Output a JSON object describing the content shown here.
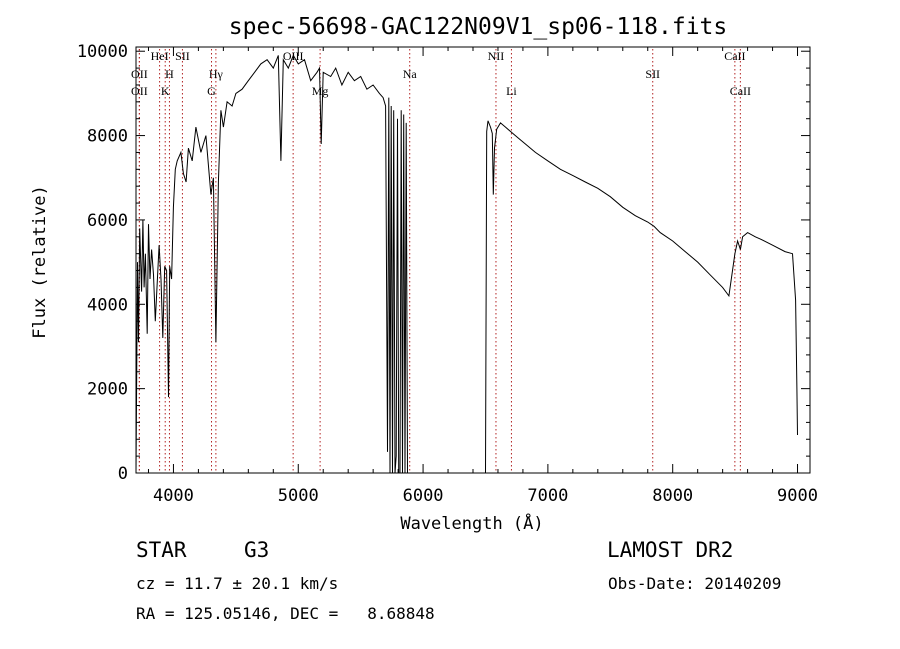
{
  "chart_data": {
    "type": "line",
    "title": "spec-56698-GAC122N09V1_sp06-118.fits",
    "xlabel": "Wavelength (Å)",
    "ylabel": "Flux (relative)",
    "xlim": [
      3700,
      9100
    ],
    "ylim": [
      0,
      10100
    ],
    "xticks": [
      4000,
      5000,
      6000,
      7000,
      8000,
      9000
    ],
    "yticks": [
      0,
      2000,
      4000,
      6000,
      8000,
      10000
    ],
    "line_color": "#000000",
    "marker_color": "#b22222",
    "series": [
      {
        "x": [
          3700,
          3712,
          3720,
          3730,
          3745,
          3755,
          3765,
          3775,
          3790,
          3800,
          3812,
          3825,
          3840,
          3855,
          3870,
          3885,
          3900,
          3915,
          3930,
          3945,
          3960,
          3970,
          3985,
          4000,
          4015,
          4030,
          4060,
          4080,
          4101,
          4120,
          4150,
          4180,
          4220,
          4260,
          4300,
          4320,
          4340,
          4360,
          4380,
          4400,
          4430,
          4470,
          4500,
          4550,
          4600,
          4650,
          4700,
          4750,
          4800,
          4840,
          4861,
          4880,
          4920,
          4960,
          5000,
          5050,
          5100,
          5150,
          5170,
          5184,
          5200,
          5260,
          5300,
          5350,
          5400,
          5450,
          5500,
          5550,
          5600,
          5650,
          5680,
          5700,
          5715,
          5725,
          5735,
          5745,
          5755,
          5765,
          5775,
          5785,
          5795,
          5805,
          5815,
          5825,
          5835,
          5845,
          5855,
          5865,
          5875,
          5885,
          5895,
          5905,
          5915,
          6500,
          6510,
          6520,
          6540,
          6555,
          6563,
          6572,
          6590,
          6620,
          6660,
          6700,
          6760,
          6820,
          6900,
          7000,
          7100,
          7200,
          7300,
          7400,
          7500,
          7600,
          7700,
          7800,
          7850,
          7900,
          8000,
          8100,
          8200,
          8300,
          8400,
          8450,
          8498,
          8520,
          8542,
          8560,
          8600,
          8662,
          8700,
          8800,
          8900,
          8960,
          8985,
          8995,
          9000
        ],
        "y": [
          0,
          5000,
          3100,
          5800,
          4300,
          6000,
          4400,
          5200,
          3300,
          5900,
          4600,
          5300,
          4700,
          3600,
          4500,
          5400,
          4600,
          3200,
          4900,
          4800,
          1800,
          4900,
          4600,
          6300,
          7200,
          7400,
          7600,
          7100,
          6900,
          7700,
          7400,
          8200,
          7600,
          8000,
          6600,
          7000,
          3100,
          6900,
          8600,
          8200,
          8800,
          8700,
          9000,
          9100,
          9300,
          9500,
          9700,
          9800,
          9600,
          9900,
          7400,
          9800,
          9600,
          9900,
          9700,
          9800,
          9300,
          9500,
          9600,
          7800,
          9500,
          9400,
          9600,
          9200,
          9500,
          9300,
          9400,
          9100,
          9200,
          9000,
          8900,
          8700,
          500,
          8900,
          0,
          8700,
          0,
          8600,
          0,
          400,
          8400,
          0,
          0,
          8600,
          0,
          8500,
          0,
          8300,
          0,
          0,
          0,
          0,
          0,
          0,
          8100,
          8350,
          8200,
          8050,
          6600,
          7700,
          8150,
          8300,
          8200,
          8100,
          7950,
          7800,
          7600,
          7400,
          7200,
          7050,
          6900,
          6750,
          6550,
          6300,
          6100,
          5950,
          5850,
          5700,
          5500,
          5250,
          5000,
          4700,
          4400,
          4200,
          5200,
          5500,
          5300,
          5600,
          5700,
          5600,
          5550,
          5400,
          5250,
          5200,
          4100,
          2000,
          900
        ]
      }
    ],
    "lines": [
      {
        "label": "OII",
        "x": 3727,
        "row": 1
      },
      {
        "label": "OII",
        "x": 3727,
        "row": 2
      },
      {
        "label": "HeI",
        "x": 3889,
        "row": 0
      },
      {
        "label": "H",
        "x": 3968,
        "row": 1
      },
      {
        "label": "K",
        "x": 3934,
        "row": 2
      },
      {
        "label": "SII",
        "x": 4072,
        "row": 0
      },
      {
        "label": "Hγ",
        "x": 4340,
        "row": 1
      },
      {
        "label": "G",
        "x": 4305,
        "row": 2
      },
      {
        "label": "OIII",
        "x": 4959,
        "row": 0
      },
      {
        "label": "Mg",
        "x": 5175,
        "row": 2
      },
      {
        "label": "Na",
        "x": 5893,
        "row": 1
      },
      {
        "label": "NII",
        "x": 6584,
        "row": 0
      },
      {
        "label": "Li",
        "x": 6708,
        "row": 2
      },
      {
        "label": "SII",
        "x": 7840,
        "row": 1
      },
      {
        "label": "CaII",
        "x": 8498,
        "row": 0
      },
      {
        "label": "CaII",
        "x": 8542,
        "row": 2
      }
    ]
  },
  "info": {
    "object_class": "STAR",
    "subclass": "G3",
    "survey": "LAMOST DR2",
    "redshift": "cz = 11.7 ± 20.1 km/s",
    "obs_date": "Obs-Date: 20140209",
    "coords": "RA = 125.05146, DEC =   8.68848"
  }
}
